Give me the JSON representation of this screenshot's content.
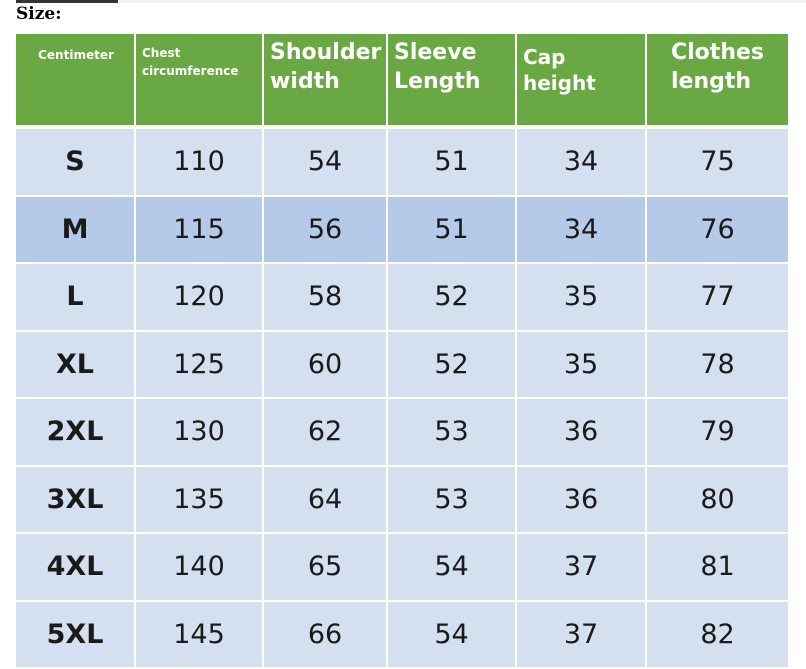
{
  "title": "Size:",
  "headers": [
    "Centimeter",
    "Chest circumference",
    "Shoulder width",
    "Sleeve Length",
    "Cap height",
    "Clothes length"
  ],
  "rows": [
    [
      "S",
      "110",
      "54",
      "51",
      "34",
      "75"
    ],
    [
      "M",
      "115",
      "56",
      "51",
      "34",
      "76"
    ],
    [
      "L",
      "120",
      "58",
      "52",
      "35",
      "77"
    ],
    [
      "XL",
      "125",
      "60",
      "52",
      "35",
      "78"
    ],
    [
      "2XL",
      "130",
      "62",
      "53",
      "36",
      "79"
    ],
    [
      "3XL",
      "135",
      "64",
      "53",
      "36",
      "80"
    ],
    [
      "4XL",
      "140",
      "65",
      "54",
      "37",
      "81"
    ],
    [
      "5XL",
      "145",
      "66",
      "54",
      "37",
      "82"
    ]
  ],
  "colors": {
    "header": "#6aa843",
    "row": "#d4dff0",
    "highlight_row": "#b5c9e8"
  }
}
